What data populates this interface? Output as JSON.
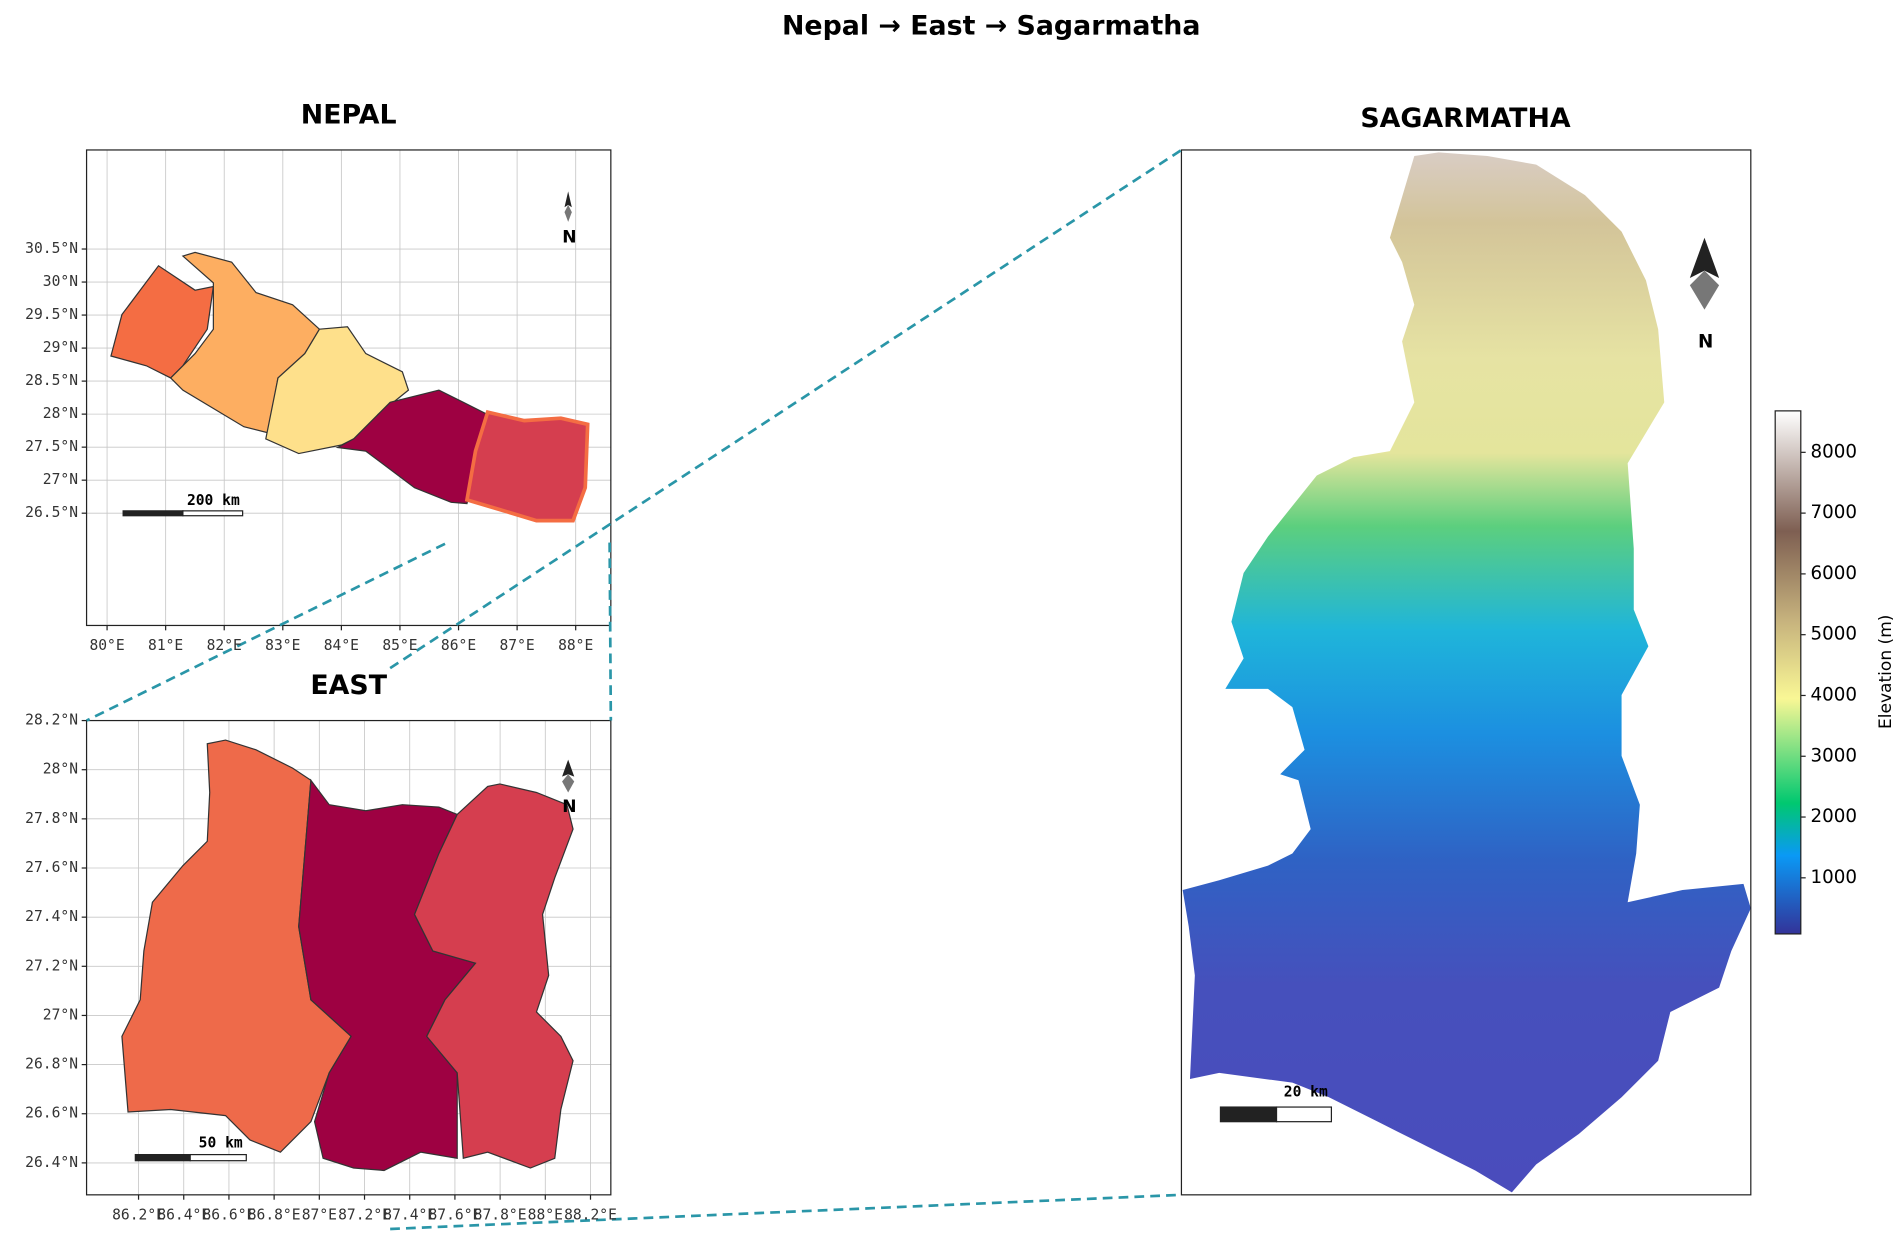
{
  "title": "Nepal  →  East  →  Sagarmatha",
  "panels": [
    {
      "title": "NEPAL",
      "xlim": [
        79.65,
        88.6
      ],
      "ylim": [
        24.8,
        32.0
      ],
      "xticks": [
        {
          "value": 80,
          "label": "80°E"
        },
        {
          "value": 81,
          "label": "81°E"
        },
        {
          "value": 82,
          "label": "82°E"
        },
        {
          "value": 83,
          "label": "83°E"
        },
        {
          "value": 84,
          "label": "84°E"
        },
        {
          "value": 85,
          "label": "85°E"
        },
        {
          "value": 86,
          "label": "86°E"
        },
        {
          "value": 87,
          "label": "87°E"
        },
        {
          "value": 88,
          "label": "88°E"
        }
      ],
      "yticks": [
        {
          "value": 26.5,
          "label": "26.5°N"
        },
        {
          "value": 27,
          "label": "27°N"
        },
        {
          "value": 27.5,
          "label": "27.5°N"
        },
        {
          "value": 28,
          "label": "28°N"
        },
        {
          "value": 28.5,
          "label": "28.5°N"
        },
        {
          "value": 29,
          "label": "29°N"
        },
        {
          "value": 29.5,
          "label": "29.5°N"
        },
        {
          "value": 30,
          "label": "30°N"
        },
        {
          "value": 30.5,
          "label": "30.5°N"
        }
      ],
      "scale_bar": "200 km",
      "north": "N"
    },
    {
      "title": "EAST",
      "xlim": [
        85.97,
        88.29
      ],
      "ylim": [
        26.27,
        28.2
      ],
      "xticks": [
        {
          "value": 86.2,
          "label": "86.2°E"
        },
        {
          "value": 86.4,
          "label": "86.4°E"
        },
        {
          "value": 86.6,
          "label": "86.6°E"
        },
        {
          "value": 86.8,
          "label": "86.8°E"
        },
        {
          "value": 87,
          "label": "87°E"
        },
        {
          "value": 87.2,
          "label": "87.2°E"
        },
        {
          "value": 87.4,
          "label": "87.4°E"
        },
        {
          "value": 87.6,
          "label": "87.6°E"
        },
        {
          "value": 87.8,
          "label": "87.8°E"
        },
        {
          "value": 88,
          "label": "88°E"
        },
        {
          "value": 88.2,
          "label": "88.2°E"
        }
      ],
      "yticks": [
        {
          "value": 26.4,
          "label": "26.4°N"
        },
        {
          "value": 26.6,
          "label": "26.6°N"
        },
        {
          "value": 26.8,
          "label": "26.8°N"
        },
        {
          "value": 27,
          "label": "27°N"
        },
        {
          "value": 27.2,
          "label": "27.2°N"
        },
        {
          "value": 27.4,
          "label": "27.4°N"
        },
        {
          "value": 27.6,
          "label": "27.6°N"
        },
        {
          "value": 27.8,
          "label": "27.8°N"
        },
        {
          "value": 28,
          "label": "28°N"
        },
        {
          "value": 28.2,
          "label": "28.2°N"
        }
      ],
      "scale_bar": "50 km",
      "north": "N"
    },
    {
      "title": "SAGARMATHA",
      "scale_bar": "20 km",
      "north": "N"
    }
  ],
  "colorbar": {
    "label": "Elevation (m)",
    "range": [
      77,
      8682
    ],
    "ticks": [
      1000,
      2000,
      3000,
      4000,
      5000,
      6000,
      7000,
      8000
    ]
  }
}
